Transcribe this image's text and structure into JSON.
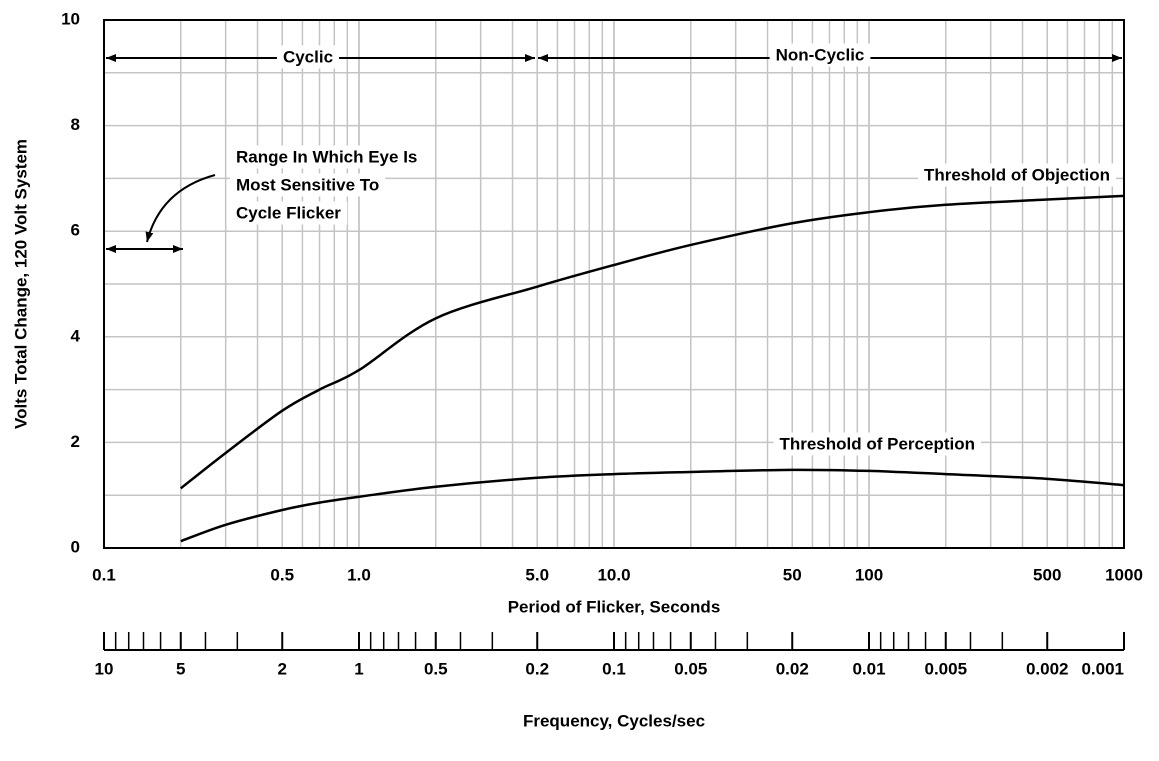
{
  "chart_data": {
    "type": "line",
    "xlabel": "Period of Flicker, Seconds",
    "ylabel": "Volts Total Change, 120 Volt System",
    "xscale": "log",
    "xlim": [
      0.1,
      1000
    ],
    "xticks": [
      0.1,
      0.5,
      {
        "value": 1,
        "label": "1.0"
      },
      {
        "value": 5,
        "label": "5.0"
      },
      {
        "value": 10,
        "label": "10.0"
      },
      50,
      100,
      500,
      1000
    ],
    "ylim": [
      0,
      10
    ],
    "yticks": [
      0,
      2,
      4,
      6,
      8,
      10
    ],
    "y_minor_ticks": [
      0,
      1,
      2,
      3,
      4,
      5,
      6,
      7,
      8,
      9,
      10
    ],
    "grid": true,
    "series": [
      {
        "name": "Threshold of Objection",
        "color": "#000000",
        "x": [
          0.2,
          0.3,
          0.5,
          0.7,
          1,
          2,
          5,
          10,
          20,
          50,
          100,
          200,
          500,
          1000
        ],
        "values": [
          1.13,
          1.8,
          2.6,
          3.0,
          3.37,
          4.35,
          4.95,
          5.36,
          5.74,
          6.15,
          6.36,
          6.5,
          6.6,
          6.67
        ]
      },
      {
        "name": "Threshold of Perception",
        "color": "#000000",
        "x": [
          0.2,
          0.3,
          0.5,
          0.7,
          1,
          2,
          5,
          10,
          20,
          50,
          100,
          200,
          500,
          1000
        ],
        "values": [
          0.13,
          0.44,
          0.72,
          0.86,
          0.97,
          1.16,
          1.33,
          1.4,
          1.44,
          1.48,
          1.46,
          1.4,
          1.31,
          1.19
        ]
      }
    ],
    "annotations": {
      "cyclic": "Cyclic",
      "non_cyclic": "Non-Cyclic",
      "range": [
        "Range In Which Eye Is",
        "Most Sensitive To",
        "Cycle Flicker"
      ]
    },
    "secondary_axis": {
      "label": "Frequency, Cycles/sec",
      "lim": [
        10,
        0.001
      ],
      "ticks": [
        10,
        5,
        2,
        1,
        0.5,
        0.2,
        0.1,
        0.05,
        0.02,
        0.01,
        0.005,
        0.002,
        0.001
      ]
    }
  }
}
